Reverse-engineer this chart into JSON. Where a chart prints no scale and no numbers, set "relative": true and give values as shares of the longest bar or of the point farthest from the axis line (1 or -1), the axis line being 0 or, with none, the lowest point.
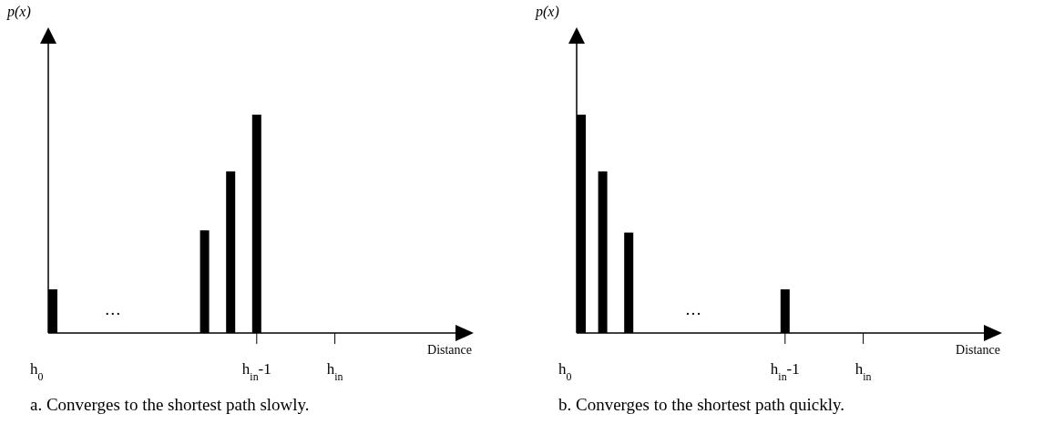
{
  "chart_data": [
    {
      "type": "bar",
      "title": "a. Converges to the shortest path slowly.",
      "xlabel": "Distance",
      "ylabel": "p(x)",
      "relative": true,
      "color": "#000000",
      "annotations": [
        "…"
      ],
      "categories": [
        "h$_{0}$",
        null,
        null,
        null,
        null,
        null,
        null,
        null,
        "h$_{in}$-1",
        null,
        null,
        "h$_{in}$",
        null,
        null,
        null,
        null
      ],
      "values": [
        0.2,
        null,
        null,
        null,
        null,
        null,
        0.47,
        0.74,
        1,
        null,
        null,
        null,
        null,
        null,
        null,
        null
      ]
    },
    {
      "type": "bar",
      "title": "b. Converges to the shortest path quickly.",
      "xlabel": "Distance",
      "ylabel": "p(x)",
      "relative": true,
      "color": "#000000",
      "annotations": [
        "…"
      ],
      "categories": [
        "h$_{0}$",
        null,
        null,
        null,
        null,
        null,
        null,
        null,
        "h$_{in}$-1",
        null,
        null,
        "h$_{in}$",
        null,
        null,
        null,
        null
      ],
      "values": [
        1,
        0.74,
        0.46,
        null,
        null,
        null,
        null,
        null,
        0.2,
        null,
        null,
        null,
        null,
        null,
        null,
        null
      ]
    }
  ]
}
